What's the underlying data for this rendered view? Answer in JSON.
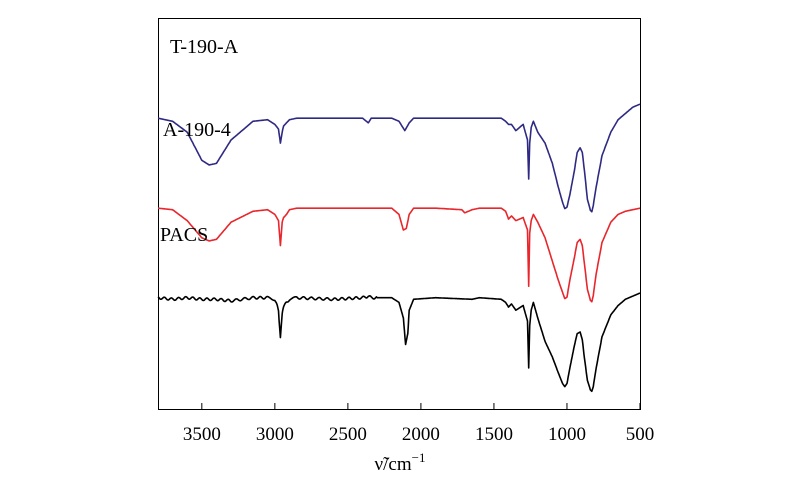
{
  "chart_data": {
    "type": "line",
    "title": "",
    "xlabel": "ν̃/cm",
    "xlabel_superscript": "−1",
    "ylabel": "",
    "xlim": [
      3800,
      500
    ],
    "x_reversed": true,
    "xticks": [
      3500,
      3000,
      2500,
      2000,
      1500,
      1000,
      500
    ],
    "grid": false,
    "colors": {
      "T-190-A": "#2e2a83",
      "A-190-4": "#e8262b",
      "PACS": "#000000"
    },
    "series": [
      {
        "name": "T-190-A",
        "x": [
          3800,
          3700,
          3600,
          3500,
          3450,
          3400,
          3300,
          3150,
          3050,
          3000,
          2975,
          2962,
          2950,
          2940,
          2920,
          2900,
          2850,
          2400,
          2360,
          2340,
          2200,
          2150,
          2110,
          2080,
          2050,
          1900,
          1650,
          1600,
          1450,
          1420,
          1400,
          1380,
          1350,
          1300,
          1270,
          1262,
          1255,
          1245,
          1230,
          1200,
          1150,
          1100,
          1060,
          1030,
          1015,
          1000,
          980,
          950,
          930,
          910,
          895,
          880,
          860,
          840,
          830,
          820,
          800,
          760,
          700,
          650,
          600,
          550,
          500
        ],
        "values": [
          64,
          62,
          55,
          37,
          34,
          35,
          50,
          62,
          63,
          60,
          57,
          48,
          55,
          59,
          61,
          63,
          64,
          64,
          61,
          64,
          64,
          62,
          56,
          61,
          64,
          64,
          64,
          64,
          64,
          62,
          60,
          60,
          56,
          60,
          50,
          25,
          48,
          58,
          62,
          55,
          48,
          35,
          20,
          10,
          6,
          7,
          15,
          30,
          42,
          45,
          42,
          30,
          12,
          5,
          4,
          8,
          20,
          40,
          55,
          63,
          67,
          71,
          73
        ]
      },
      {
        "name": "A-190-4",
        "x": [
          3800,
          3700,
          3600,
          3500,
          3450,
          3400,
          3300,
          3150,
          3050,
          3000,
          2975,
          2962,
          2950,
          2940,
          2920,
          2900,
          2850,
          2200,
          2150,
          2120,
          2100,
          2080,
          2050,
          1900,
          1720,
          1700,
          1650,
          1600,
          1450,
          1420,
          1400,
          1380,
          1350,
          1300,
          1270,
          1262,
          1255,
          1245,
          1230,
          1200,
          1150,
          1100,
          1060,
          1030,
          1015,
          1000,
          980,
          950,
          930,
          910,
          895,
          880,
          860,
          840,
          830,
          820,
          800,
          760,
          700,
          650,
          600,
          550,
          500
        ],
        "values": [
          64,
          63,
          56,
          45,
          43,
          44,
          55,
          62,
          63,
          60,
          56,
          40,
          55,
          58,
          60,
          63,
          64,
          64,
          60,
          50,
          51,
          60,
          64,
          64,
          63,
          61,
          63,
          64,
          64,
          62,
          57,
          59,
          56,
          58,
          50,
          14,
          48,
          56,
          60,
          55,
          45,
          30,
          18,
          10,
          6,
          7,
          18,
          32,
          42,
          44,
          40,
          28,
          12,
          5,
          4,
          8,
          22,
          42,
          55,
          60,
          62,
          63,
          64
        ]
      },
      {
        "name": "PACS",
        "x": [
          3800,
          3700,
          3600,
          3500,
          3400,
          3300,
          3150,
          3050,
          3000,
          2975,
          2962,
          2950,
          2940,
          2920,
          2900,
          2850,
          2600,
          2400,
          2360,
          2340,
          2200,
          2150,
          2120,
          2105,
          2090,
          2080,
          2050,
          1900,
          1650,
          1600,
          1450,
          1420,
          1400,
          1380,
          1350,
          1300,
          1270,
          1262,
          1255,
          1245,
          1230,
          1200,
          1150,
          1100,
          1060,
          1030,
          1015,
          1000,
          980,
          950,
          930,
          910,
          895,
          880,
          860,
          840,
          830,
          820,
          800,
          760,
          700,
          650,
          600,
          550,
          500
        ],
        "values": [
          63,
          62,
          63,
          62,
          62,
          61,
          63,
          63,
          62,
          55,
          37,
          52,
          57,
          60,
          62,
          63,
          62,
          63,
          64,
          63,
          63,
          60,
          50,
          33,
          40,
          55,
          62,
          63,
          62,
          63,
          62,
          60,
          57,
          59,
          55,
          58,
          48,
          18,
          45,
          55,
          60,
          50,
          35,
          25,
          15,
          8,
          6,
          8,
          18,
          32,
          40,
          41,
          36,
          24,
          10,
          4,
          3,
          6,
          18,
          38,
          52,
          58,
          62,
          64,
          66
        ]
      }
    ],
    "series_labels": [
      "T-190-A",
      "A-190-4",
      "PACS"
    ]
  }
}
